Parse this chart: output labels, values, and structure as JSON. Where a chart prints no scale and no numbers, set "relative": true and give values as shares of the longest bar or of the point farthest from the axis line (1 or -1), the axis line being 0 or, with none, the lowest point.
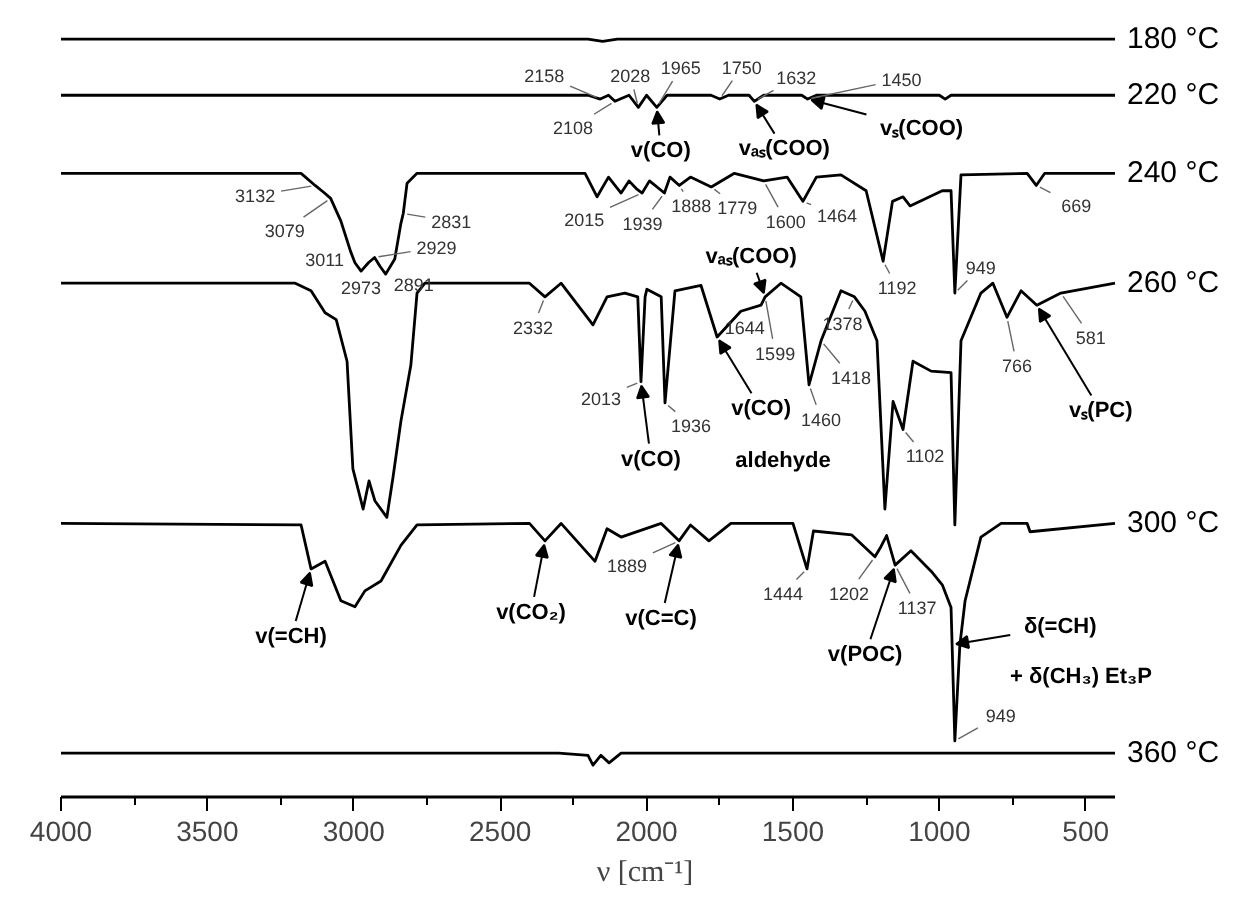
{
  "chart_data": {
    "type": "line",
    "relative": true,
    "xlabel": "ν [cm⁻¹]",
    "xlim": [
      4000,
      400
    ],
    "xticks": [
      4000,
      {
        "value": 3750,
        "label": null
      },
      3500,
      {
        "value": 3250,
        "label": null
      },
      3000,
      {
        "value": 2750,
        "label": null
      },
      2500,
      {
        "value": 2250,
        "label": null
      },
      2000,
      {
        "value": 1750,
        "label": null
      },
      1500,
      {
        "value": 1250,
        "label": null
      },
      1000,
      {
        "value": 750,
        "label": null
      },
      500
    ],
    "grid": false,
    "marker": "none",
    "line_style": "solid",
    "series": [
      {
        "name": "180 °C",
        "color": "#000000",
        "x": [
          4000,
          2200,
          2150,
          2100,
          400
        ],
        "values": [
          1.0,
          1.0,
          0.997,
          1.0,
          1.0
        ]
      },
      {
        "name": "220 °C",
        "color": "#000000",
        "x": [
          4000,
          2200,
          2158,
          2130,
          2108,
          2060,
          2028,
          2000,
          1965,
          1930,
          1780,
          1750,
          1720,
          1650,
          1632,
          1600,
          1470,
          1450,
          1420,
          1000,
          980,
          960,
          400
        ],
        "values": [
          0.926,
          0.926,
          0.921,
          0.926,
          0.918,
          0.926,
          0.91,
          0.926,
          0.91,
          0.926,
          0.926,
          0.921,
          0.926,
          0.926,
          0.918,
          0.926,
          0.926,
          0.921,
          0.926,
          0.926,
          0.921,
          0.926,
          0.926
        ]
      },
      {
        "name": "240 °C",
        "color": "#000000",
        "x": [
          4000,
          3180,
          3132,
          3100,
          3079,
          3044,
          3011,
          2996,
          2975,
          2950,
          2929,
          2910,
          2891,
          2860,
          2839,
          2831,
          2818,
          2784,
          2400,
          2210,
          2169,
          2130,
          2087,
          2060,
          2033,
          2015,
          1990,
          1939,
          1920,
          1888,
          1850,
          1779,
          1700,
          1600,
          1520,
          1466,
          1420,
          1336,
          1250,
          1192,
          1160,
          1124,
          1100,
          990,
          960,
          947,
          926,
          700,
          669,
          640,
          400
        ],
        "values": [
          0.823,
          0.823,
          0.807,
          0.797,
          0.79,
          0.76,
          0.72,
          0.705,
          0.694,
          0.705,
          0.712,
          0.7,
          0.69,
          0.71,
          0.757,
          0.77,
          0.81,
          0.823,
          0.823,
          0.823,
          0.792,
          0.818,
          0.797,
          0.813,
          0.802,
          0.797,
          0.813,
          0.797,
          0.818,
          0.807,
          0.818,
          0.805,
          0.823,
          0.813,
          0.818,
          0.786,
          0.818,
          0.821,
          0.8,
          0.707,
          0.786,
          0.792,
          0.78,
          0.8,
          0.8,
          0.665,
          0.821,
          0.823,
          0.807,
          0.823,
          0.823
        ]
      },
      {
        "name": "260 °C",
        "color": "#000000",
        "x": [
          4000,
          3200,
          3146,
          3098,
          3060,
          3023,
          3003,
          2968,
          2948,
          2928,
          2887,
          2866,
          2839,
          2805,
          2784,
          2757,
          2400,
          2347,
          2292,
          2183,
          2135,
          2074,
          2030,
          2019,
          2005,
          1999,
          1950,
          1937,
          1903,
          1814,
          1759,
          1678,
          1609,
          1595,
          1541,
          1473,
          1445,
          1404,
          1336,
          1290,
          1254,
          1213,
          1186,
          1158,
          1124,
          1090,
          1028,
          960,
          947,
          926,
          858,
          817,
          769,
          721,
          667,
          585,
          400
        ],
        "values": [
          0.678,
          0.678,
          0.668,
          0.639,
          0.63,
          0.575,
          0.433,
          0.38,
          0.417,
          0.391,
          0.369,
          0.422,
          0.496,
          0.57,
          0.665,
          0.678,
          0.678,
          0.66,
          0.678,
          0.623,
          0.66,
          0.665,
          0.66,
          0.548,
          0.66,
          0.67,
          0.66,
          0.52,
          0.668,
          0.675,
          0.607,
          0.641,
          0.649,
          0.66,
          0.678,
          0.66,
          0.544,
          0.602,
          0.668,
          0.66,
          0.641,
          0.602,
          0.38,
          0.522,
          0.485,
          0.575,
          0.562,
          0.56,
          0.359,
          0.602,
          0.665,
          0.678,
          0.633,
          0.668,
          0.649,
          0.665,
          0.678
        ]
      },
      {
        "name": "300 °C",
        "color": "#000000",
        "x": [
          4000,
          3180,
          3146,
          3098,
          3044,
          2996,
          2962,
          2907,
          2839,
          2784,
          2400,
          2347,
          2292,
          2176,
          2135,
          2087,
          1950,
          1889,
          1850,
          1787,
          1712,
          1500,
          1452,
          1430,
          1300,
          1220,
          1200,
          1180,
          1151,
          1097,
          1028,
          990,
          960,
          947,
          930,
          912,
          858,
          789,
          700,
          690,
          400
        ],
        "values": [
          0.361,
          0.359,
          0.301,
          0.311,
          0.259,
          0.251,
          0.272,
          0.285,
          0.332,
          0.359,
          0.361,
          0.338,
          0.361,
          0.311,
          0.354,
          0.343,
          0.361,
          0.338,
          0.359,
          0.338,
          0.361,
          0.361,
          0.301,
          0.351,
          0.346,
          0.317,
          0.33,
          0.345,
          0.306,
          0.325,
          0.298,
          0.28,
          0.25,
          0.074,
          0.2,
          0.259,
          0.343,
          0.361,
          0.361,
          0.35,
          0.361
        ]
      },
      {
        "name": "360 °C",
        "color": "#000000",
        "x": [
          4000,
          2300,
          2200,
          2183,
          2156,
          2128,
          2087,
          2000,
          400
        ],
        "values": [
          0.058,
          0.058,
          0.055,
          0.042,
          0.055,
          0.045,
          0.058,
          0.058,
          0.058
        ]
      }
    ],
    "annotations": [
      {
        "text": "2158",
        "x": 2158,
        "y": 0.921
      },
      {
        "text": "2028",
        "x": 2028,
        "y": 0.91
      },
      {
        "text": "1965",
        "x": 1965,
        "y": 0.91
      },
      {
        "text": "1750",
        "x": 1750,
        "y": 0.921
      },
      {
        "text": "1632",
        "x": 1632,
        "y": 0.918
      },
      {
        "text": "1450",
        "x": 1450,
        "y": 0.921
      },
      {
        "text": "2108",
        "x": 2108,
        "y": 0.918
      },
      {
        "text": "v(CO)",
        "x": 1965,
        "y": 0.91
      },
      {
        "text": "vₐₛ(COO)",
        "x": 1632,
        "y": 0.918
      },
      {
        "text": "vₛ(COO)",
        "x": 1450,
        "y": 0.921
      },
      {
        "text": "3132",
        "x": 3132,
        "y": 0.807
      },
      {
        "text": "3079",
        "x": 3079,
        "y": 0.79
      },
      {
        "text": "3011",
        "x": 3011,
        "y": 0.72
      },
      {
        "text": "2973",
        "x": 2975,
        "y": 0.694
      },
      {
        "text": "2891",
        "x": 2891,
        "y": 0.69
      },
      {
        "text": "2929",
        "x": 2929,
        "y": 0.712
      },
      {
        "text": "2831",
        "x": 2831,
        "y": 0.77
      },
      {
        "text": "2015",
        "x": 2015,
        "y": 0.797
      },
      {
        "text": "1939",
        "x": 1939,
        "y": 0.797
      },
      {
        "text": "1888",
        "x": 1888,
        "y": 0.807
      },
      {
        "text": "1779",
        "x": 1779,
        "y": 0.805
      },
      {
        "text": "1600",
        "x": 1600,
        "y": 0.813
      },
      {
        "text": "1464",
        "x": 1466,
        "y": 0.786
      },
      {
        "text": "669",
        "x": 669,
        "y": 0.807
      },
      {
        "text": "vₐₛ(COO)",
        "x": 1595,
        "y": 0.66
      },
      {
        "text": "1192",
        "x": 1192,
        "y": 0.707
      },
      {
        "text": "949",
        "x": 947,
        "y": 0.665
      },
      {
        "text": "2332",
        "x": 2347,
        "y": 0.66
      },
      {
        "text": "1644",
        "x": 1678,
        "y": 0.641
      },
      {
        "text": "1599",
        "x": 1595,
        "y": 0.66
      },
      {
        "text": "1378",
        "x": 1290,
        "y": 0.66
      },
      {
        "text": "1418",
        "x": 1404,
        "y": 0.602
      },
      {
        "text": "1460",
        "x": 1445,
        "y": 0.544
      },
      {
        "text": "v(CO)",
        "x": 1759,
        "y": 0.607
      },
      "aldehyde",
      {
        "text": "2013",
        "x": 2019,
        "y": 0.548
      },
      {
        "text": "1936",
        "x": 1937,
        "y": 0.52
      },
      {
        "text": "v(CO)",
        "x": 2019,
        "y": 0.548
      },
      {
        "text": "1102",
        "x": 1124,
        "y": 0.485
      },
      {
        "text": "766",
        "x": 769,
        "y": 0.633
      },
      {
        "text": "581",
        "x": 585,
        "y": 0.665
      },
      {
        "text": "vₛ(PC)",
        "x": 667,
        "y": 0.649
      },
      {
        "text": "v(=CH)",
        "x": 3146,
        "y": 0.301
      },
      {
        "text": "v(CO₂)",
        "x": 2347,
        "y": 0.338
      },
      {
        "text": "1889",
        "x": 1889,
        "y": 0.338
      },
      {
        "text": "v(C=C)",
        "x": 1889,
        "y": 0.338
      },
      {
        "text": "1444",
        "x": 1452,
        "y": 0.301
      },
      {
        "text": "1202",
        "x": 1220,
        "y": 0.317
      },
      {
        "text": "1137",
        "x": 1151,
        "y": 0.306
      },
      {
        "text": "v(POC)",
        "x": 1151,
        "y": 0.306
      },
      {
        "text": "δ(=CH)",
        "x": 956,
        "y": 0.201
      },
      "+ δ(CH₃) Et₃P",
      {
        "text": "949",
        "x": 947,
        "y": 0.074
      }
    ]
  }
}
